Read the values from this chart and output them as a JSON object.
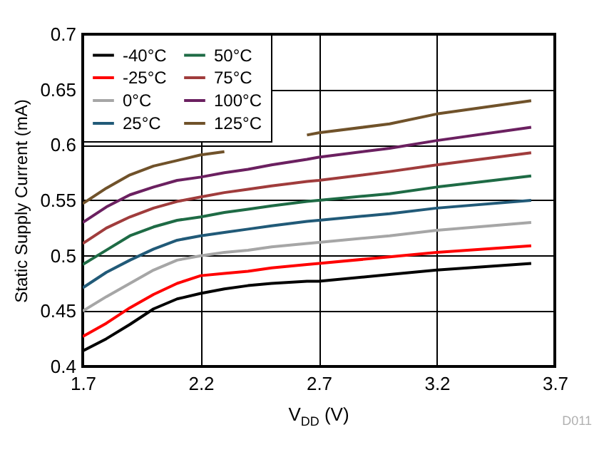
{
  "chart_data": {
    "type": "line",
    "xlabel": "V$_{DD}$ (V)",
    "ylabel": "Static Supply Current (mA)",
    "x": [
      1.7,
      1.8,
      1.9,
      2.0,
      2.1,
      2.2,
      2.3,
      2.4,
      2.5,
      2.65,
      2.7,
      3.0,
      3.2,
      3.6
    ],
    "series": [
      {
        "name": "-40°C",
        "color": "#000000",
        "values": [
          0.414,
          0.425,
          0.438,
          0.452,
          0.461,
          0.466,
          0.47,
          0.473,
          0.475,
          0.477,
          0.477,
          0.483,
          0.487,
          0.493
        ]
      },
      {
        "name": "-25°C",
        "color": "#ff0000",
        "values": [
          0.427,
          0.439,
          0.453,
          0.465,
          0.475,
          0.482,
          0.484,
          0.486,
          0.489,
          0.492,
          0.493,
          0.499,
          0.503,
          0.509
        ]
      },
      {
        "name": "0°C",
        "color": "#a6a6a6",
        "values": [
          0.45,
          0.463,
          0.475,
          0.487,
          0.496,
          0.5,
          0.503,
          0.505,
          0.508,
          0.511,
          0.512,
          0.518,
          0.523,
          0.53
        ]
      },
      {
        "name": "25°C",
        "color": "#215a78",
        "values": [
          0.471,
          0.485,
          0.496,
          0.506,
          0.514,
          0.518,
          0.521,
          0.524,
          0.527,
          0.531,
          0.532,
          0.538,
          0.543,
          0.55
        ]
      },
      {
        "name": "50°C",
        "color": "#1e6b45",
        "values": [
          0.492,
          0.505,
          0.518,
          0.526,
          0.532,
          0.535,
          0.539,
          0.542,
          0.545,
          0.549,
          0.55,
          0.556,
          0.562,
          0.572
        ]
      },
      {
        "name": "75°C",
        "color": "#a03c3c",
        "values": [
          0.511,
          0.525,
          0.535,
          0.543,
          0.549,
          0.553,
          0.557,
          0.56,
          0.563,
          0.567,
          0.568,
          0.576,
          0.582,
          0.593
        ]
      },
      {
        "name": "100°C",
        "color": "#6b2060",
        "values": [
          0.53,
          0.544,
          0.555,
          0.562,
          0.568,
          0.571,
          0.575,
          0.578,
          0.582,
          0.587,
          0.589,
          0.597,
          0.604,
          0.616
        ]
      },
      {
        "name": "125°C",
        "color": "#70522a",
        "values": [
          0.547,
          0.561,
          0.573,
          0.581,
          0.586,
          0.591,
          0.594,
          null,
          null,
          0.609,
          0.611,
          0.619,
          0.628,
          0.64
        ]
      }
    ],
    "xlim": [
      1.7,
      3.7
    ],
    "xticks": [
      1.7,
      2.2,
      2.7,
      3.2,
      3.7
    ],
    "ylim": [
      0.4,
      0.7
    ],
    "yticks": [
      0.4,
      0.45,
      0.5,
      0.55,
      0.6,
      0.65,
      0.7
    ],
    "grid": true,
    "legend": "top left",
    "annotations": [
      "D011"
    ]
  }
}
